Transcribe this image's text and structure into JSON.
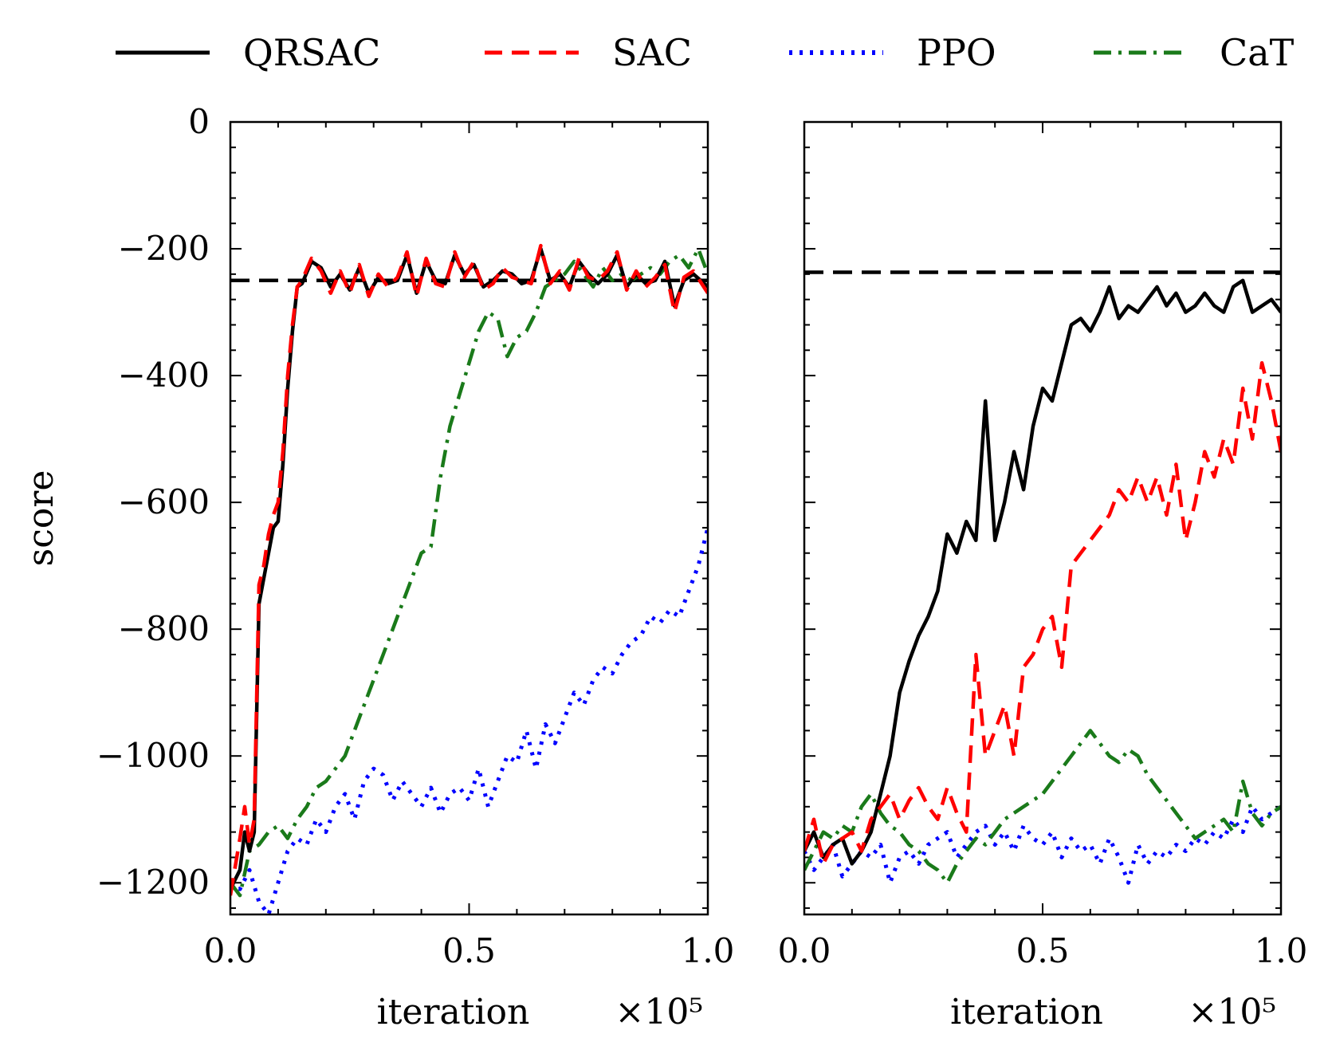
{
  "chart_data": [
    {
      "type": "line",
      "panel": "left",
      "ylabel": "score",
      "xlabel": "iteration",
      "x_multiplier": "×10⁵",
      "xlim": [
        0,
        1.0
      ],
      "ylim": [
        -1250,
        0
      ],
      "xticks": [
        0.0,
        0.5,
        1.0
      ],
      "xtick_labels": [
        "0.0",
        "0.5",
        "1.0"
      ],
      "yticks": [
        0,
        -200,
        -400,
        -600,
        -800,
        -1000,
        -1200
      ],
      "ytick_labels": [
        "0",
        "−200",
        "−400",
        "−600",
        "−800",
        "−1000",
        "−1200"
      ],
      "reference_line": -250,
      "series": [
        {
          "name": "QRSAC",
          "color": "#000000",
          "dash": "solid",
          "x": [
            0.0,
            0.02,
            0.03,
            0.04,
            0.05,
            0.06,
            0.07,
            0.08,
            0.09,
            0.1,
            0.11,
            0.12,
            0.13,
            0.14,
            0.15,
            0.17,
            0.19,
            0.21,
            0.23,
            0.25,
            0.27,
            0.29,
            0.31,
            0.33,
            0.35,
            0.37,
            0.39,
            0.41,
            0.43,
            0.45,
            0.47,
            0.49,
            0.51,
            0.53,
            0.55,
            0.57,
            0.59,
            0.61,
            0.63,
            0.65,
            0.67,
            0.69,
            0.71,
            0.73,
            0.75,
            0.77,
            0.79,
            0.81,
            0.83,
            0.85,
            0.87,
            0.89,
            0.91,
            0.93,
            0.95,
            0.97,
            1.0
          ],
          "y": [
            -1210,
            -1180,
            -1120,
            -1150,
            -1120,
            -760,
            -720,
            -680,
            -640,
            -630,
            -540,
            -420,
            -330,
            -260,
            -255,
            -220,
            -230,
            -260,
            -240,
            -265,
            -230,
            -270,
            -245,
            -255,
            -250,
            -210,
            -270,
            -220,
            -250,
            -255,
            -210,
            -240,
            -225,
            -260,
            -250,
            -235,
            -240,
            -255,
            -250,
            -200,
            -250,
            -240,
            -260,
            -220,
            -240,
            -255,
            -240,
            -210,
            -260,
            -240,
            -255,
            -250,
            -220,
            -290,
            -250,
            -240,
            -260
          ]
        },
        {
          "name": "SAC",
          "color": "#ff0000",
          "dash": "dashed",
          "x": [
            0.0,
            0.02,
            0.03,
            0.04,
            0.05,
            0.06,
            0.07,
            0.08,
            0.09,
            0.1,
            0.11,
            0.12,
            0.13,
            0.14,
            0.15,
            0.17,
            0.19,
            0.21,
            0.23,
            0.25,
            0.27,
            0.29,
            0.31,
            0.33,
            0.35,
            0.37,
            0.39,
            0.41,
            0.43,
            0.45,
            0.47,
            0.49,
            0.51,
            0.53,
            0.55,
            0.57,
            0.59,
            0.61,
            0.63,
            0.65,
            0.67,
            0.69,
            0.71,
            0.73,
            0.75,
            0.77,
            0.79,
            0.81,
            0.83,
            0.85,
            0.87,
            0.89,
            0.91,
            0.93,
            0.95,
            0.97,
            1.0
          ],
          "y": [
            -1220,
            -1130,
            -1080,
            -1140,
            -1100,
            -730,
            -700,
            -650,
            -620,
            -600,
            -520,
            -400,
            -320,
            -260,
            -250,
            -215,
            -235,
            -270,
            -235,
            -270,
            -225,
            -275,
            -240,
            -260,
            -245,
            -205,
            -275,
            -215,
            -255,
            -260,
            -205,
            -245,
            -220,
            -265,
            -255,
            -230,
            -245,
            -250,
            -255,
            -195,
            -255,
            -235,
            -265,
            -215,
            -245,
            -250,
            -235,
            -205,
            -265,
            -235,
            -260,
            -245,
            -225,
            -300,
            -245,
            -235,
            -270
          ]
        },
        {
          "name": "PPO",
          "color": "#0000ff",
          "dash": "dotted",
          "x": [
            0.0,
            0.02,
            0.04,
            0.06,
            0.08,
            0.1,
            0.12,
            0.14,
            0.16,
            0.18,
            0.2,
            0.22,
            0.24,
            0.26,
            0.28,
            0.3,
            0.32,
            0.34,
            0.36,
            0.38,
            0.4,
            0.42,
            0.44,
            0.46,
            0.48,
            0.5,
            0.52,
            0.54,
            0.56,
            0.58,
            0.6,
            0.62,
            0.64,
            0.66,
            0.68,
            0.7,
            0.72,
            0.74,
            0.76,
            0.78,
            0.8,
            0.82,
            0.84,
            0.86,
            0.88,
            0.9,
            0.92,
            0.94,
            0.96,
            0.98,
            1.0
          ],
          "y": [
            -1200,
            -1210,
            -1180,
            -1230,
            -1250,
            -1200,
            -1150,
            -1130,
            -1140,
            -1100,
            -1120,
            -1080,
            -1060,
            -1100,
            -1040,
            -1020,
            -1030,
            -1070,
            -1040,
            -1060,
            -1080,
            -1050,
            -1090,
            -1060,
            -1050,
            -1070,
            -1020,
            -1080,
            -1040,
            -1000,
            -1010,
            -960,
            -1020,
            -950,
            -980,
            -940,
            -900,
            -920,
            -880,
            -860,
            -870,
            -840,
            -820,
            -810,
            -780,
            -790,
            -770,
            -780,
            -740,
            -700,
            -640
          ]
        },
        {
          "name": "CaT",
          "color": "#1a7a1a",
          "dash": "dashdot",
          "x": [
            0.0,
            0.02,
            0.04,
            0.06,
            0.08,
            0.1,
            0.12,
            0.14,
            0.16,
            0.18,
            0.2,
            0.22,
            0.24,
            0.26,
            0.28,
            0.3,
            0.32,
            0.34,
            0.36,
            0.38,
            0.4,
            0.42,
            0.44,
            0.46,
            0.48,
            0.5,
            0.52,
            0.54,
            0.56,
            0.58,
            0.6,
            0.62,
            0.64,
            0.66,
            0.68,
            0.7,
            0.72,
            0.74,
            0.76,
            0.78,
            0.8,
            0.82,
            0.84,
            0.86,
            0.88,
            0.9,
            0.92,
            0.94,
            0.96,
            0.98,
            1.0
          ],
          "y": [
            -1200,
            -1220,
            -1150,
            -1140,
            -1120,
            -1110,
            -1130,
            -1100,
            -1080,
            -1050,
            -1040,
            -1020,
            -1000,
            -960,
            -920,
            -880,
            -840,
            -800,
            -760,
            -720,
            -680,
            -670,
            -560,
            -480,
            -430,
            -380,
            -330,
            -300,
            -310,
            -370,
            -340,
            -330,
            -300,
            -260,
            -250,
            -240,
            -220,
            -240,
            -260,
            -230,
            -250,
            -240,
            -250,
            -240,
            -230,
            -240,
            -220,
            -210,
            -230,
            -200,
            -240
          ]
        }
      ],
      "legend_position": "top"
    },
    {
      "type": "line",
      "panel": "right",
      "xlabel": "iteration",
      "x_multiplier": "×10⁵",
      "xlim": [
        0,
        1.0
      ],
      "ylim": [
        -1250,
        0
      ],
      "xticks": [
        0.0,
        0.5,
        1.0
      ],
      "xtick_labels": [
        "0.0",
        "0.5",
        "1.0"
      ],
      "reference_line": -237,
      "series": [
        {
          "name": "QRSAC",
          "color": "#000000",
          "dash": "solid",
          "x": [
            0.0,
            0.02,
            0.04,
            0.06,
            0.08,
            0.1,
            0.12,
            0.14,
            0.16,
            0.18,
            0.2,
            0.22,
            0.24,
            0.26,
            0.28,
            0.3,
            0.32,
            0.34,
            0.36,
            0.38,
            0.4,
            0.42,
            0.44,
            0.46,
            0.48,
            0.5,
            0.52,
            0.54,
            0.56,
            0.58,
            0.6,
            0.62,
            0.64,
            0.66,
            0.68,
            0.7,
            0.72,
            0.74,
            0.76,
            0.78,
            0.8,
            0.82,
            0.84,
            0.86,
            0.88,
            0.9,
            0.92,
            0.94,
            0.96,
            0.98,
            1.0
          ],
          "y": [
            -1150,
            -1120,
            -1160,
            -1140,
            -1130,
            -1170,
            -1150,
            -1120,
            -1060,
            -1000,
            -900,
            -850,
            -810,
            -780,
            -740,
            -650,
            -680,
            -630,
            -660,
            -440,
            -660,
            -600,
            -520,
            -580,
            -480,
            -420,
            -440,
            -380,
            -320,
            -310,
            -330,
            -300,
            -260,
            -310,
            -290,
            -300,
            -280,
            -260,
            -290,
            -270,
            -300,
            -290,
            -270,
            -290,
            -300,
            -260,
            -250,
            -300,
            -290,
            -280,
            -300
          ]
        },
        {
          "name": "SAC",
          "color": "#ff0000",
          "dash": "dashed",
          "x": [
            0.0,
            0.02,
            0.04,
            0.06,
            0.08,
            0.1,
            0.12,
            0.14,
            0.16,
            0.18,
            0.2,
            0.22,
            0.24,
            0.26,
            0.28,
            0.3,
            0.32,
            0.34,
            0.36,
            0.38,
            0.4,
            0.42,
            0.44,
            0.46,
            0.48,
            0.5,
            0.52,
            0.54,
            0.56,
            0.58,
            0.6,
            0.62,
            0.64,
            0.66,
            0.68,
            0.7,
            0.72,
            0.74,
            0.76,
            0.78,
            0.8,
            0.82,
            0.84,
            0.86,
            0.88,
            0.9,
            0.92,
            0.94,
            0.96,
            0.98,
            1.0
          ],
          "y": [
            -1150,
            -1100,
            -1170,
            -1140,
            -1130,
            -1120,
            -1150,
            -1100,
            -1080,
            -1060,
            -1100,
            -1070,
            -1050,
            -1080,
            -1100,
            -1050,
            -1090,
            -1120,
            -840,
            -1000,
            -960,
            -920,
            -1000,
            -860,
            -840,
            -800,
            -780,
            -860,
            -700,
            -680,
            -660,
            -640,
            -620,
            -580,
            -600,
            -560,
            -600,
            -560,
            -620,
            -540,
            -660,
            -600,
            -520,
            -560,
            -500,
            -540,
            -420,
            -500,
            -380,
            -440,
            -520
          ]
        },
        {
          "name": "PPO",
          "color": "#0000ff",
          "dash": "dotted",
          "x": [
            0.0,
            0.02,
            0.04,
            0.06,
            0.08,
            0.1,
            0.12,
            0.14,
            0.16,
            0.18,
            0.2,
            0.22,
            0.24,
            0.26,
            0.28,
            0.3,
            0.32,
            0.34,
            0.36,
            0.38,
            0.4,
            0.42,
            0.44,
            0.46,
            0.48,
            0.5,
            0.52,
            0.54,
            0.56,
            0.58,
            0.6,
            0.62,
            0.64,
            0.66,
            0.68,
            0.7,
            0.72,
            0.74,
            0.76,
            0.78,
            0.8,
            0.82,
            0.84,
            0.86,
            0.88,
            0.9,
            0.92,
            0.94,
            0.96,
            0.98,
            1.0
          ],
          "y": [
            -1150,
            -1180,
            -1160,
            -1140,
            -1190,
            -1170,
            -1150,
            -1160,
            -1140,
            -1200,
            -1160,
            -1150,
            -1170,
            -1140,
            -1130,
            -1120,
            -1160,
            -1140,
            -1120,
            -1110,
            -1140,
            -1120,
            -1150,
            -1110,
            -1130,
            -1140,
            -1120,
            -1160,
            -1130,
            -1150,
            -1140,
            -1170,
            -1130,
            -1160,
            -1200,
            -1140,
            -1170,
            -1150,
            -1160,
            -1140,
            -1150,
            -1130,
            -1140,
            -1120,
            -1130,
            -1100,
            -1120,
            -1080,
            -1100,
            -1090,
            -1080
          ]
        },
        {
          "name": "CaT",
          "color": "#1a7a1a",
          "dash": "dashdot",
          "x": [
            0.0,
            0.02,
            0.04,
            0.06,
            0.08,
            0.1,
            0.12,
            0.14,
            0.16,
            0.18,
            0.2,
            0.22,
            0.24,
            0.26,
            0.28,
            0.3,
            0.32,
            0.34,
            0.36,
            0.38,
            0.4,
            0.42,
            0.44,
            0.46,
            0.48,
            0.5,
            0.52,
            0.54,
            0.56,
            0.58,
            0.6,
            0.62,
            0.64,
            0.66,
            0.68,
            0.7,
            0.72,
            0.74,
            0.76,
            0.78,
            0.8,
            0.82,
            0.84,
            0.86,
            0.88,
            0.9,
            0.92,
            0.94,
            0.96,
            0.98,
            1.0
          ],
          "y": [
            -1180,
            -1150,
            -1120,
            -1130,
            -1110,
            -1120,
            -1080,
            -1060,
            -1090,
            -1110,
            -1120,
            -1140,
            -1150,
            -1170,
            -1180,
            -1200,
            -1170,
            -1150,
            -1130,
            -1140,
            -1120,
            -1100,
            -1090,
            -1080,
            -1070,
            -1060,
            -1040,
            -1020,
            -1000,
            -980,
            -960,
            -980,
            -1000,
            -1010,
            -990,
            -1000,
            -1030,
            -1050,
            -1070,
            -1090,
            -1110,
            -1130,
            -1120,
            -1110,
            -1100,
            -1120,
            -1040,
            -1090,
            -1110,
            -1090,
            -1080
          ]
        }
      ]
    }
  ]
}
